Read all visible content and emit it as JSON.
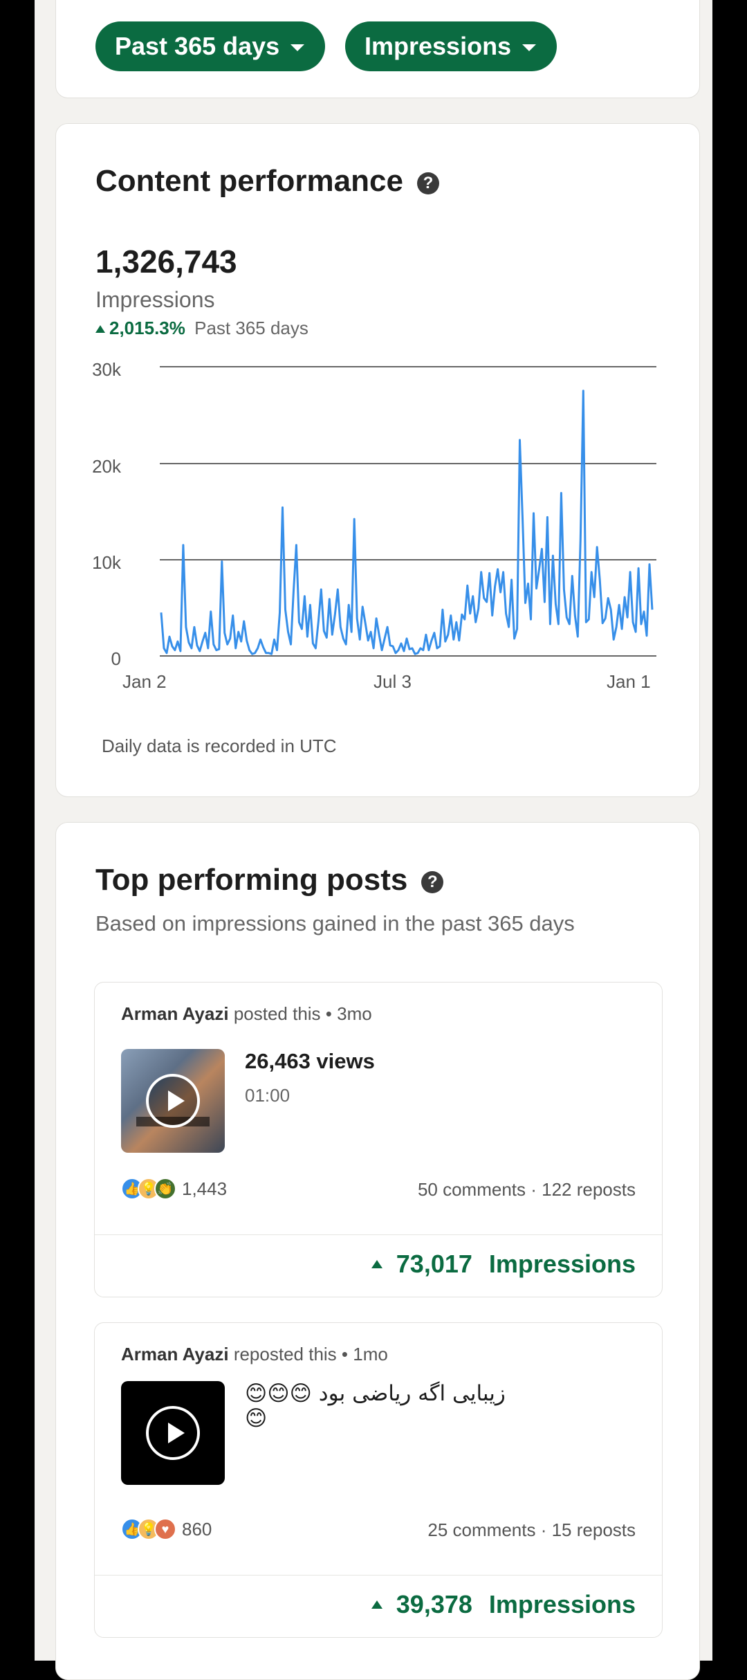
{
  "filters": {
    "range_label": "Past 365 days",
    "metric_label": "Impressions"
  },
  "content_performance": {
    "title": "Content performance",
    "total": "1,326,743",
    "total_label": "Impressions",
    "change_pct": "2,015.3%",
    "change_period": "Past 365 days",
    "footnote": "Daily data is recorded in UTC"
  },
  "chart_data": {
    "type": "line",
    "y_ticks": [
      "30k",
      "20k",
      "10k",
      "0"
    ],
    "x_ticks": [
      "Jan 2",
      "Jul 3",
      "Jan 1"
    ],
    "ylim": [
      0,
      30000
    ],
    "color": "#378fe9",
    "grid": true,
    "series": [
      {
        "values": [
          4500,
          800,
          300,
          2000,
          1000,
          600,
          1500,
          500,
          11500,
          3000,
          1400,
          800,
          3000,
          1100,
          500,
          1500,
          2400,
          800,
          4600,
          1200,
          600,
          700,
          9800,
          2400,
          1200,
          1800,
          4200,
          800,
          2500,
          1500,
          3600,
          1600,
          600,
          200,
          300,
          800,
          1700,
          900,
          300,
          300,
          200,
          1700,
          600,
          4500,
          15400,
          4800,
          2500,
          1200,
          6800,
          11500,
          3500,
          2800,
          6200,
          2000,
          5300,
          1300,
          800,
          3600,
          6900,
          2600,
          1900,
          5900,
          2200,
          4300,
          6900,
          3000,
          1800,
          1200,
          5300,
          2500,
          14200,
          3900,
          1700,
          5100,
          3400,
          1600,
          2500,
          800,
          3900,
          2200,
          600,
          1800,
          3000,
          1100,
          1000,
          300,
          600,
          1300,
          500,
          1800,
          700,
          800,
          200,
          300,
          800,
          600,
          2200,
          600,
          1600,
          2400,
          800,
          1000,
          4800,
          1500,
          2200,
          4200,
          1700,
          3500,
          1600,
          4300,
          3800,
          7300,
          4400,
          6200,
          3500,
          4900,
          8700,
          6000,
          5600,
          8600,
          4200,
          7200,
          9000,
          6600,
          8700,
          4400,
          3000,
          7900,
          1800,
          2800,
          22400,
          14300,
          5500,
          7500,
          3800,
          14800,
          7000,
          9000,
          11100,
          5600,
          14400,
          3300,
          10400,
          5400,
          3300,
          16900,
          6900,
          4000,
          3300,
          8300,
          4200,
          2000,
          12100,
          27500,
          3500,
          3800,
          8700,
          6100,
          11300,
          7900,
          3400,
          3900,
          6000,
          4800,
          1700,
          3000,
          5300,
          2800,
          6100,
          4000,
          8700,
          3500,
          2500,
          9100,
          3300,
          4600,
          2100,
          9500,
          4800
        ]
      }
    ]
  },
  "top_posts": {
    "title": "Top performing posts",
    "subtitle": "Based on impressions gained in the past 365 days",
    "posts": [
      {
        "author": "Arman Ayazi",
        "action": "posted this • 3mo",
        "headline": "26,463 views",
        "duration": "01:00",
        "reaction_count": "1,443",
        "comments": "50 comments",
        "reposts": "122 reposts",
        "impressions_value": "73,017",
        "impressions_label": "Impressions"
      },
      {
        "author": "Arman Ayazi",
        "action": "reposted this • 1mo",
        "text": "زیبایی اگه ریاضی بود 😊😊😊😊",
        "reaction_count": "860",
        "comments": "25 comments",
        "reposts": "15 reposts",
        "impressions_value": "39,378",
        "impressions_label": "Impressions"
      }
    ]
  },
  "icons": {
    "help": "help-circle-icon",
    "caret": "caret-down-icon",
    "play": "play-icon",
    "reactions": [
      "like-icon",
      "insightful-icon",
      "celebrate-icon",
      "love-icon"
    ]
  }
}
